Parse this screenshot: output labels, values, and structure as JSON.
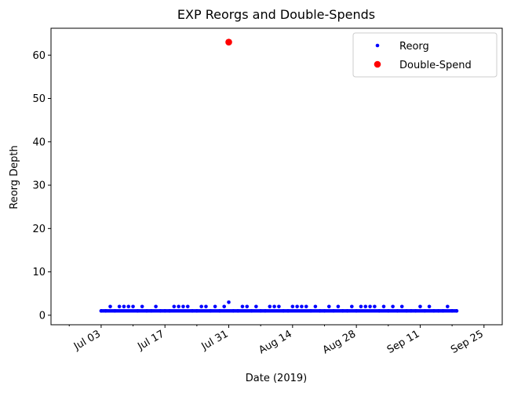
{
  "chart_data": {
    "type": "scatter",
    "title": "EXP Reorgs and Double-Spends",
    "xlabel": "Date (2019)",
    "ylabel": "Reorg Depth",
    "xlim": [
      "2019-06-22",
      "2019-09-29"
    ],
    "ylim": [
      -2.2,
      66.2
    ],
    "x_ticks": [
      {
        "date": "2019-07-03",
        "label": "Jul 03"
      },
      {
        "date": "2019-07-17",
        "label": "Jul 17"
      },
      {
        "date": "2019-07-31",
        "label": "Jul 31"
      },
      {
        "date": "2019-08-14",
        "label": "Aug 14"
      },
      {
        "date": "2019-08-28",
        "label": "Aug 28"
      },
      {
        "date": "2019-09-11",
        "label": "Sep 11"
      },
      {
        "date": "2019-09-25",
        "label": "Sep 25"
      }
    ],
    "y_ticks": [
      0,
      10,
      20,
      30,
      40,
      50,
      60
    ],
    "legend_position": "top-right",
    "series": [
      {
        "name": "Reorg",
        "color": "#0000ff",
        "marker_size": "small",
        "points": [
          {
            "x": "2019-07-03",
            "y": 1
          },
          {
            "x": "2019-07-04",
            "y": 1
          },
          {
            "x": "2019-07-05",
            "y": 2
          },
          {
            "x": "2019-07-06",
            "y": 1
          },
          {
            "x": "2019-07-07",
            "y": 2
          },
          {
            "x": "2019-07-08",
            "y": 2
          },
          {
            "x": "2019-07-09",
            "y": 2
          },
          {
            "x": "2019-07-10",
            "y": 2
          },
          {
            "x": "2019-07-11",
            "y": 1
          },
          {
            "x": "2019-07-12",
            "y": 2
          },
          {
            "x": "2019-07-13",
            "y": 1
          },
          {
            "x": "2019-07-14",
            "y": 1
          },
          {
            "x": "2019-07-15",
            "y": 2
          },
          {
            "x": "2019-07-16",
            "y": 1
          },
          {
            "x": "2019-07-17",
            "y": 1
          },
          {
            "x": "2019-07-18",
            "y": 1
          },
          {
            "x": "2019-07-19",
            "y": 2
          },
          {
            "x": "2019-07-20",
            "y": 2
          },
          {
            "x": "2019-07-21",
            "y": 2
          },
          {
            "x": "2019-07-22",
            "y": 2
          },
          {
            "x": "2019-07-23",
            "y": 1
          },
          {
            "x": "2019-07-24",
            "y": 1
          },
          {
            "x": "2019-07-25",
            "y": 2
          },
          {
            "x": "2019-07-26",
            "y": 2
          },
          {
            "x": "2019-07-27",
            "y": 1
          },
          {
            "x": "2019-07-28",
            "y": 2
          },
          {
            "x": "2019-07-29",
            "y": 1
          },
          {
            "x": "2019-07-30",
            "y": 2
          },
          {
            "x": "2019-07-31",
            "y": 3
          },
          {
            "x": "2019-08-01",
            "y": 1
          },
          {
            "x": "2019-08-02",
            "y": 1
          },
          {
            "x": "2019-08-03",
            "y": 2
          },
          {
            "x": "2019-08-04",
            "y": 2
          },
          {
            "x": "2019-08-05",
            "y": 1
          },
          {
            "x": "2019-08-06",
            "y": 2
          },
          {
            "x": "2019-08-07",
            "y": 1
          },
          {
            "x": "2019-08-08",
            "y": 1
          },
          {
            "x": "2019-08-09",
            "y": 2
          },
          {
            "x": "2019-08-10",
            "y": 2
          },
          {
            "x": "2019-08-11",
            "y": 2
          },
          {
            "x": "2019-08-12",
            "y": 1
          },
          {
            "x": "2019-08-13",
            "y": 1
          },
          {
            "x": "2019-08-14",
            "y": 2
          },
          {
            "x": "2019-08-15",
            "y": 2
          },
          {
            "x": "2019-08-16",
            "y": 2
          },
          {
            "x": "2019-08-17",
            "y": 2
          },
          {
            "x": "2019-08-18",
            "y": 1
          },
          {
            "x": "2019-08-19",
            "y": 2
          },
          {
            "x": "2019-08-20",
            "y": 1
          },
          {
            "x": "2019-08-21",
            "y": 1
          },
          {
            "x": "2019-08-22",
            "y": 2
          },
          {
            "x": "2019-08-23",
            "y": 1
          },
          {
            "x": "2019-08-24",
            "y": 2
          },
          {
            "x": "2019-08-25",
            "y": 1
          },
          {
            "x": "2019-08-26",
            "y": 1
          },
          {
            "x": "2019-08-27",
            "y": 2
          },
          {
            "x": "2019-08-28",
            "y": 1
          },
          {
            "x": "2019-08-29",
            "y": 2
          },
          {
            "x": "2019-08-30",
            "y": 2
          },
          {
            "x": "2019-08-31",
            "y": 2
          },
          {
            "x": "2019-09-01",
            "y": 2
          },
          {
            "x": "2019-09-02",
            "y": 1
          },
          {
            "x": "2019-09-03",
            "y": 2
          },
          {
            "x": "2019-09-04",
            "y": 1
          },
          {
            "x": "2019-09-05",
            "y": 2
          },
          {
            "x": "2019-09-06",
            "y": 1
          },
          {
            "x": "2019-09-07",
            "y": 2
          },
          {
            "x": "2019-09-08",
            "y": 1
          },
          {
            "x": "2019-09-09",
            "y": 1
          },
          {
            "x": "2019-09-10",
            "y": 1
          },
          {
            "x": "2019-09-11",
            "y": 2
          },
          {
            "x": "2019-09-12",
            "y": 1
          },
          {
            "x": "2019-09-13",
            "y": 2
          },
          {
            "x": "2019-09-14",
            "y": 1
          },
          {
            "x": "2019-09-15",
            "y": 1
          },
          {
            "x": "2019-09-16",
            "y": 1
          },
          {
            "x": "2019-09-17",
            "y": 2
          },
          {
            "x": "2019-09-18",
            "y": 1
          },
          {
            "x": "2019-09-19",
            "y": 1
          }
        ]
      },
      {
        "name": "Double-Spend",
        "color": "#ff0000",
        "marker_size": "large",
        "points": [
          {
            "x": "2019-07-31",
            "y": 63
          }
        ]
      }
    ]
  }
}
